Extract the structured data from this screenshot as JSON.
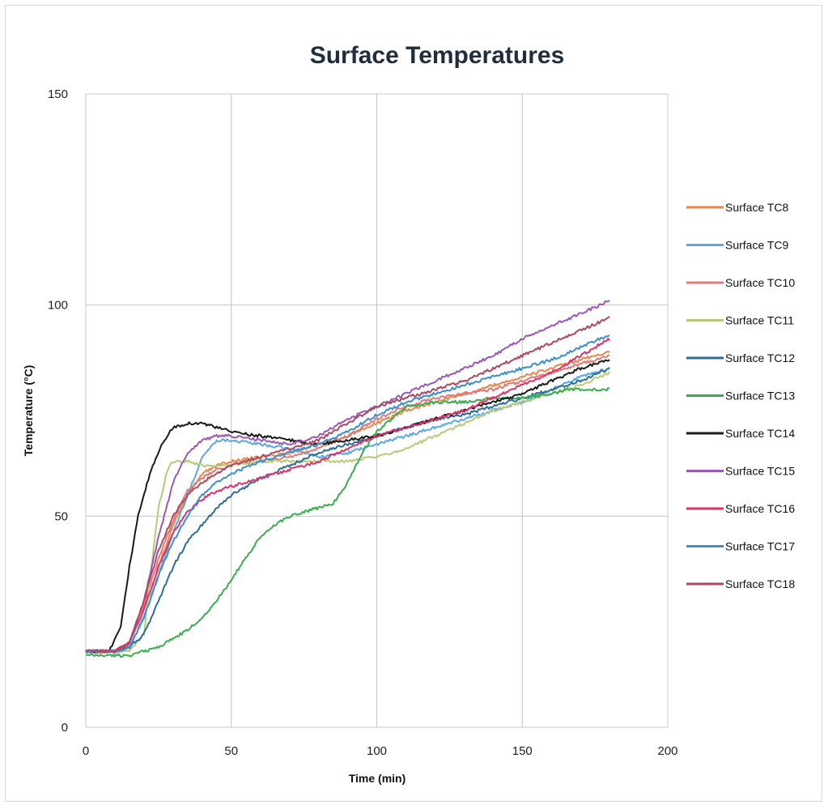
{
  "chart_data": {
    "type": "line",
    "title": "Surface Temperatures",
    "xlabel": "Time (min)",
    "ylabel": "Temperature (°C)",
    "xlim": [
      0,
      200
    ],
    "ylim": [
      0,
      150
    ],
    "xticks": [
      "0",
      "50",
      "100",
      "150",
      "200"
    ],
    "yticks": [
      "0",
      "50",
      "100",
      "150"
    ],
    "grid": true,
    "legend_position": "right",
    "series": [
      {
        "name": "Surface TC8",
        "color": "#e8874c",
        "x": [
          0,
          10,
          15,
          20,
          25,
          30,
          35,
          40,
          45,
          50,
          60,
          70,
          80,
          90,
          100,
          110,
          120,
          130,
          140,
          150,
          160,
          170,
          180
        ],
        "y": [
          18,
          18,
          20,
          28,
          38,
          48,
          55,
          60,
          62,
          63,
          64,
          65,
          67,
          69,
          72,
          75,
          77,
          79,
          81,
          83,
          85,
          87,
          89
        ]
      },
      {
        "name": "Surface TC9",
        "color": "#5aa9e6",
        "x": [
          0,
          10,
          15,
          20,
          25,
          30,
          35,
          40,
          45,
          50,
          60,
          70,
          80,
          90,
          100,
          110,
          120,
          130,
          140,
          150,
          160,
          170,
          180
        ],
        "y": [
          18,
          18,
          19,
          26,
          36,
          46,
          55,
          64,
          68,
          68,
          67,
          66,
          64,
          65,
          67,
          69,
          71,
          73,
          75,
          77,
          80,
          83,
          85
        ]
      },
      {
        "name": "Surface TC10",
        "color": "#e07a7a",
        "x": [
          0,
          10,
          15,
          20,
          25,
          30,
          35,
          40,
          45,
          50,
          60,
          70,
          80,
          90,
          100,
          110,
          120,
          130,
          140,
          150,
          160,
          170,
          180
        ],
        "y": [
          18,
          18,
          20,
          29,
          40,
          49,
          56,
          59,
          61,
          62,
          63,
          64,
          66,
          69,
          73,
          76,
          78,
          79,
          80,
          82,
          84,
          86,
          88
        ]
      },
      {
        "name": "Surface TC11",
        "color": "#b9c97a",
        "x": [
          0,
          10,
          15,
          20,
          22,
          25,
          28,
          30,
          35,
          40,
          50,
          60,
          70,
          80,
          90,
          100,
          110,
          120,
          130,
          140,
          150,
          160,
          170,
          180
        ],
        "y": [
          18,
          18,
          18,
          22,
          35,
          52,
          61,
          63,
          63,
          62,
          62,
          63,
          63,
          63,
          63,
          64,
          66,
          69,
          72,
          75,
          77,
          79,
          81,
          84
        ]
      },
      {
        "name": "Surface TC12",
        "color": "#2e6e96",
        "x": [
          0,
          10,
          15,
          20,
          25,
          30,
          35,
          40,
          45,
          50,
          60,
          70,
          80,
          90,
          100,
          110,
          120,
          130,
          140,
          150,
          160,
          170,
          180
        ],
        "y": [
          18,
          18,
          19,
          22,
          30,
          38,
          44,
          48,
          52,
          55,
          59,
          62,
          65,
          67,
          69,
          71,
          73,
          74,
          76,
          78,
          80,
          82,
          85
        ]
      },
      {
        "name": "Surface TC13",
        "color": "#3aad4e",
        "x": [
          0,
          10,
          15,
          20,
          25,
          30,
          35,
          40,
          45,
          50,
          55,
          60,
          65,
          70,
          75,
          80,
          85,
          90,
          95,
          100,
          105,
          110,
          120,
          130,
          140,
          150,
          160,
          165,
          170,
          180
        ],
        "y": [
          17,
          17,
          17,
          18,
          19,
          21,
          23,
          26,
          30,
          35,
          40,
          45,
          48,
          50,
          51,
          52,
          53,
          58,
          65,
          70,
          73,
          76,
          77,
          77,
          78,
          78,
          79,
          80,
          80,
          80
        ]
      },
      {
        "name": "Surface TC14",
        "color": "#1a1a1a",
        "x": [
          0,
          8,
          12,
          15,
          18,
          22,
          26,
          30,
          35,
          40,
          45,
          50,
          60,
          70,
          80,
          90,
          100,
          110,
          120,
          130,
          140,
          150,
          160,
          170,
          180
        ],
        "y": [
          18,
          18,
          24,
          38,
          50,
          60,
          67,
          71,
          72,
          72,
          71,
          70,
          69,
          68,
          67,
          68,
          69,
          71,
          73,
          75,
          77,
          79,
          82,
          85,
          87
        ]
      },
      {
        "name": "Surface TC15",
        "color": "#9b59b6",
        "x": [
          0,
          10,
          15,
          20,
          25,
          30,
          35,
          40,
          45,
          50,
          60,
          70,
          80,
          90,
          100,
          110,
          120,
          130,
          140,
          150,
          160,
          170,
          180
        ],
        "y": [
          18,
          18,
          20,
          30,
          45,
          58,
          65,
          68,
          69,
          69,
          68,
          67,
          69,
          73,
          76,
          79,
          82,
          85,
          88,
          92,
          95,
          98,
          101
        ]
      },
      {
        "name": "Surface TC16",
        "color": "#e0336a",
        "x": [
          0,
          10,
          15,
          20,
          25,
          30,
          35,
          40,
          45,
          50,
          60,
          70,
          80,
          90,
          100,
          110,
          120,
          130,
          140,
          150,
          160,
          170,
          180
        ],
        "y": [
          18,
          18,
          20,
          28,
          38,
          46,
          51,
          54,
          56,
          57,
          59,
          61,
          63,
          66,
          69,
          71,
          73,
          75,
          78,
          81,
          84,
          88,
          92
        ]
      },
      {
        "name": "Surface TC17",
        "color": "#3d8fd1",
        "x": [
          0,
          10,
          15,
          20,
          25,
          30,
          35,
          40,
          45,
          50,
          60,
          70,
          80,
          90,
          100,
          110,
          120,
          130,
          140,
          150,
          160,
          170,
          180
        ],
        "y": [
          18,
          18,
          19,
          26,
          36,
          44,
          50,
          55,
          58,
          60,
          63,
          65,
          67,
          70,
          74,
          77,
          79,
          81,
          83,
          85,
          87,
          90,
          93
        ]
      },
      {
        "name": "Surface TC18",
        "color": "#b0485f",
        "x": [
          0,
          10,
          15,
          20,
          25,
          30,
          35,
          40,
          45,
          50,
          60,
          70,
          80,
          90,
          100,
          110,
          120,
          130,
          140,
          150,
          160,
          170,
          180
        ],
        "y": [
          18,
          18,
          20,
          30,
          42,
          50,
          55,
          58,
          60,
          62,
          64,
          66,
          68,
          72,
          76,
          78,
          80,
          82,
          85,
          88,
          91,
          94,
          97
        ]
      }
    ]
  }
}
